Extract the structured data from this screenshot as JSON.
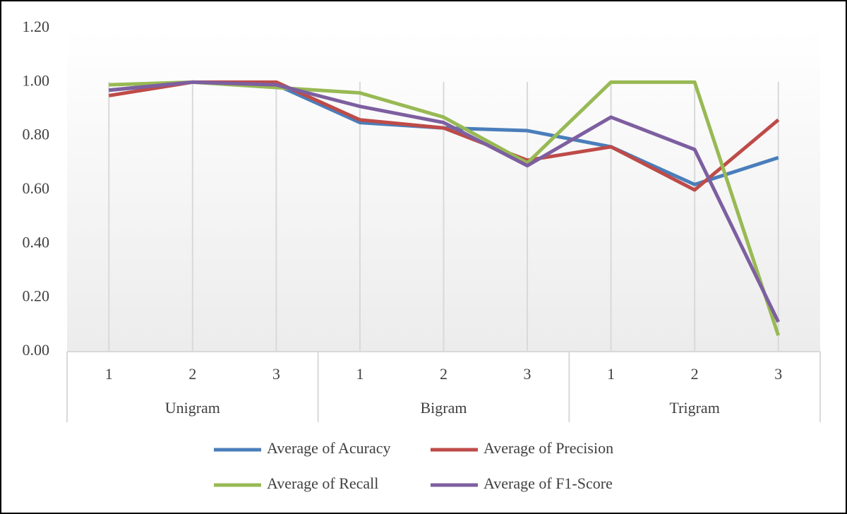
{
  "chart_data": {
    "type": "line",
    "categories": [
      "1",
      "2",
      "3",
      "1",
      "2",
      "3",
      "1",
      "2",
      "3"
    ],
    "groups": [
      "Unigram",
      "Bigram",
      "Trigram"
    ],
    "series": [
      {
        "name": "Average of Acuracy",
        "color": "#4a7ebb",
        "values": [
          0.97,
          1.0,
          0.99,
          0.85,
          0.83,
          0.82,
          0.76,
          0.62,
          0.72
        ]
      },
      {
        "name": "Average of Precision",
        "color": "#be4b48",
        "values": [
          0.95,
          1.0,
          1.0,
          0.86,
          0.83,
          0.71,
          0.76,
          0.6,
          0.86
        ]
      },
      {
        "name": "Average of Recall",
        "color": "#98b954",
        "values": [
          0.99,
          1.0,
          0.98,
          0.96,
          0.87,
          0.7,
          1.0,
          1.0,
          0.06
        ]
      },
      {
        "name": "Average of F1-Score",
        "color": "#7d5fa0",
        "values": [
          0.97,
          1.0,
          0.99,
          0.91,
          0.85,
          0.69,
          0.87,
          0.75,
          0.11
        ]
      }
    ],
    "ylim": [
      0,
      1.2
    ],
    "yticks": [
      {
        "value": 0,
        "label": "0.00"
      },
      {
        "value": 0.2,
        "label": "0.20"
      },
      {
        "value": 0.4,
        "label": "0.40"
      },
      {
        "value": 0.6,
        "label": "0.60"
      },
      {
        "value": 0.8,
        "label": "0.80"
      },
      {
        "value": 1.0,
        "label": "1.00"
      },
      {
        "value": 1.2,
        "label": "1.20"
      }
    ],
    "grid": true,
    "legend": "bottom"
  }
}
